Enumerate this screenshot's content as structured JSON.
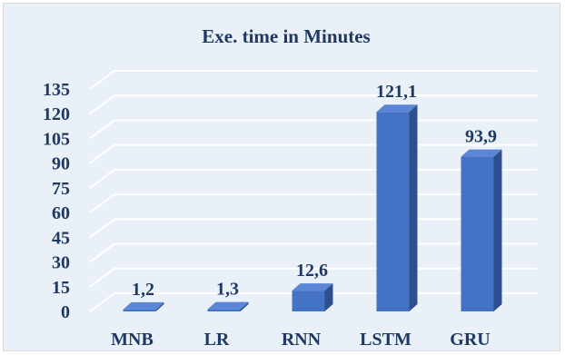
{
  "chart_data": {
    "type": "bar",
    "title": "Exe. time in Minutes",
    "xlabel": "",
    "ylabel": "",
    "categories": [
      "MNB",
      "LR",
      "RNN",
      "LSTM",
      "GRU"
    ],
    "values": [
      1.2,
      1.3,
      12.6,
      121.1,
      93.9
    ],
    "data_labels": [
      "1,2",
      "1,3",
      "12,6",
      "121,1",
      "93,9"
    ],
    "yticks": [
      0,
      15,
      30,
      45,
      60,
      75,
      90,
      105,
      120,
      135
    ],
    "ylim": [
      0,
      135
    ],
    "grid": true,
    "legend": "none",
    "style": "3d-column"
  },
  "colors": {
    "background": "#eaf0f8",
    "border": "#d9d9d9",
    "grid": "#ffffff",
    "bar_front": "#4472c4",
    "bar_top": "#5b86d6",
    "bar_side": "#2b4f8f",
    "text": "#1f3864"
  }
}
